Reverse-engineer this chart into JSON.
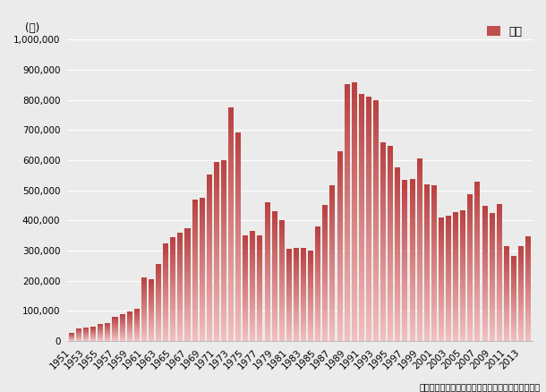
{
  "years": [
    1951,
    1952,
    1953,
    1954,
    1955,
    1956,
    1957,
    1958,
    1959,
    1960,
    1961,
    1962,
    1963,
    1964,
    1965,
    1966,
    1967,
    1968,
    1969,
    1970,
    1971,
    1972,
    1973,
    1974,
    1975,
    1976,
    1977,
    1978,
    1979,
    1980,
    1981,
    1982,
    1983,
    1984,
    1985,
    1986,
    1987,
    1988,
    1989,
    1990,
    1991,
    1992,
    1993,
    1994,
    1995,
    1996,
    1997,
    1998,
    1999,
    2000,
    2001,
    2002,
    2003,
    2004,
    2005,
    2006,
    2007,
    2008,
    2009,
    2010,
    2011,
    2012,
    2013,
    2014
  ],
  "values": [
    25000,
    42000,
    45000,
    47000,
    57000,
    60000,
    80000,
    88000,
    98000,
    107000,
    210000,
    205000,
    255000,
    323000,
    345000,
    358000,
    375000,
    470000,
    474000,
    551000,
    595000,
    600000,
    775000,
    693000,
    351000,
    366000,
    350000,
    459000,
    430000,
    402000,
    305000,
    310000,
    309000,
    300000,
    380000,
    452000,
    517000,
    630000,
    853000,
    860000,
    820000,
    810000,
    800000,
    660000,
    648000,
    575000,
    535000,
    537000,
    606000,
    520000,
    517000,
    411000,
    416000,
    429000,
    433000,
    487000,
    530000,
    447000,
    425000,
    453000,
    315000,
    283000,
    315000,
    347000
  ],
  "bar_color": "#c97070",
  "background_color": "#ebebeb",
  "plot_bg_color": "#ebebeb",
  "ylabel": "(戸)",
  "ylim": [
    0,
    1000000
  ],
  "yticks": [
    0,
    100000,
    200000,
    300000,
    400000,
    500000,
    600000,
    700000,
    800000,
    900000,
    1000000
  ],
  "ytick_labels": [
    "0",
    "100,000",
    "200,000",
    "300,000",
    "400,000",
    "500,000",
    "600,000",
    "700,000",
    "800,000",
    "900,000",
    "1,000,000"
  ],
  "legend_label": "戸数",
  "legend_color": "#c0504d",
  "footnote": "（国土交通省「建築着工統計調査報告」より作成）",
  "tick_years": [
    1951,
    1953,
    1955,
    1957,
    1959,
    1961,
    1963,
    1965,
    1967,
    1969,
    1971,
    1973,
    1975,
    1977,
    1979,
    1981,
    1983,
    1985,
    1987,
    1989,
    1991,
    1993,
    1995,
    1997,
    1999,
    2001,
    2003,
    2005,
    2007,
    2009,
    2011,
    2013
  ]
}
